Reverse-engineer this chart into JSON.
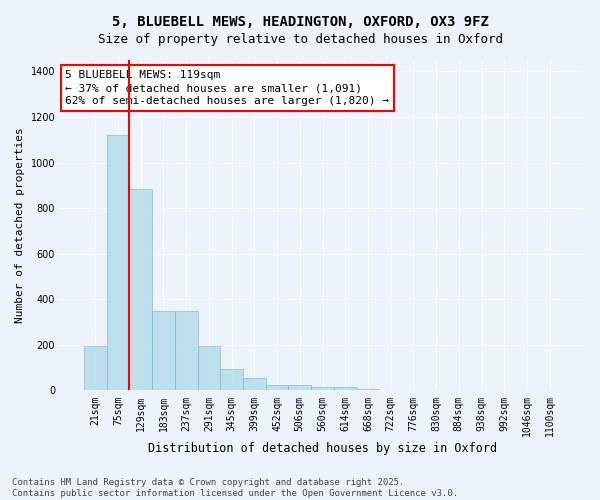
{
  "title_line1": "5, BLUEBELL MEWS, HEADINGTON, OXFORD, OX3 9FZ",
  "title_line2": "Size of property relative to detached houses in Oxford",
  "xlabel": "Distribution of detached houses by size in Oxford",
  "ylabel": "Number of detached properties",
  "categories": [
    "21sqm",
    "75sqm",
    "129sqm",
    "183sqm",
    "237sqm",
    "291sqm",
    "345sqm",
    "399sqm",
    "452sqm",
    "506sqm",
    "560sqm",
    "614sqm",
    "668sqm",
    "722sqm",
    "776sqm",
    "830sqm",
    "884sqm",
    "938sqm",
    "992sqm",
    "1046sqm",
    "1100sqm"
  ],
  "values": [
    195,
    1120,
    885,
    350,
    350,
    195,
    95,
    55,
    22,
    22,
    15,
    15,
    5,
    0,
    0,
    0,
    0,
    0,
    0,
    0,
    0
  ],
  "bar_color": "#add8e6",
  "bar_edge_color": "#6baed6",
  "bar_alpha": 0.75,
  "vline_color": "red",
  "vline_pos": 1.5,
  "annotation_text": "5 BLUEBELL MEWS: 119sqm\n← 37% of detached houses are smaller (1,091)\n62% of semi-detached houses are larger (1,820) →",
  "annotation_box_color": "white",
  "annotation_box_edge_color": "red",
  "footnote": "Contains HM Land Registry data © Crown copyright and database right 2025.\nContains public sector information licensed under the Open Government Licence v3.0.",
  "background_color": "#edf3fb",
  "grid_color": "white",
  "ylim": [
    0,
    1450
  ],
  "title_fontsize": 10,
  "subtitle_fontsize": 9,
  "xlabel_fontsize": 8.5,
  "ylabel_fontsize": 8,
  "tick_fontsize": 7,
  "annotation_fontsize": 8,
  "footnote_fontsize": 6.5
}
